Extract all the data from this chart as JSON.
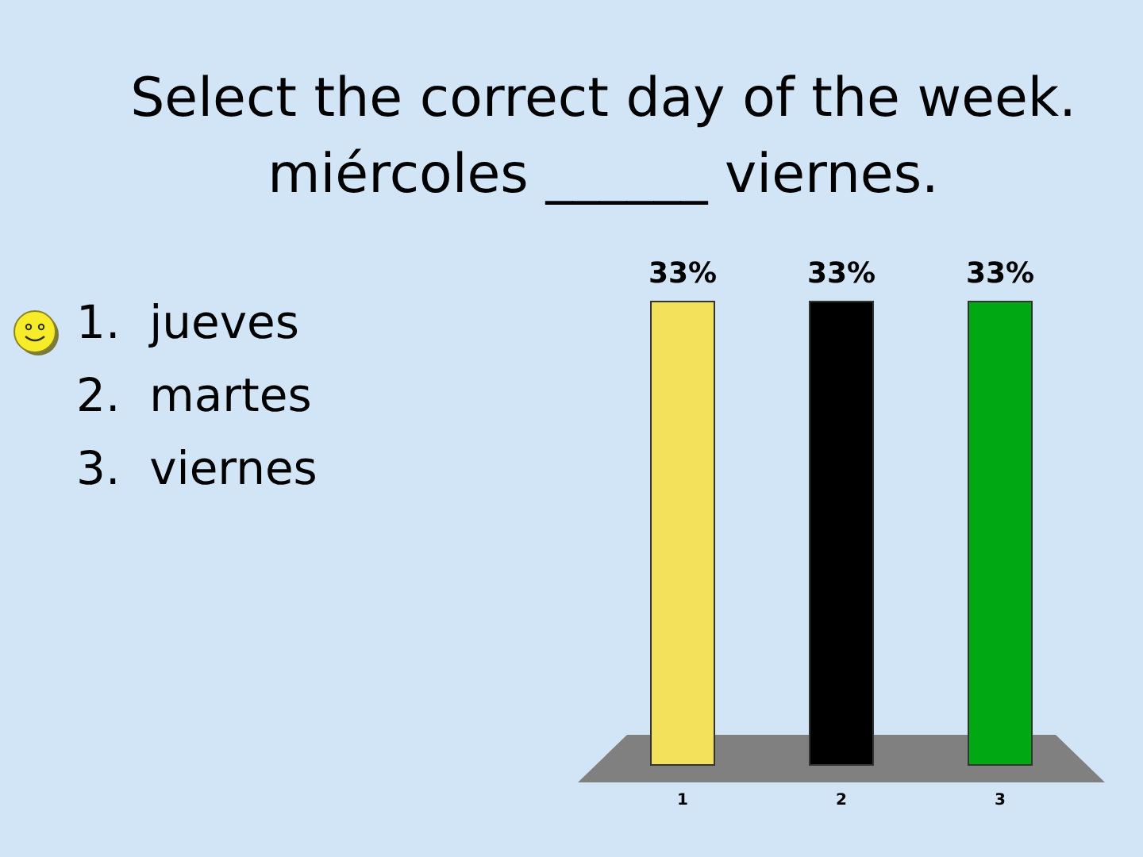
{
  "chart_data": {
    "type": "bar",
    "title": "Select the correct day of the week.",
    "subtitle": "miércoles ______ viernes.",
    "annotations": [
      "1.  jueves",
      "2.  martes",
      "3.  viernes"
    ],
    "categories": [
      "1",
      "2",
      "3"
    ],
    "values": [
      33,
      33,
      33
    ],
    "colors": [
      "#f3e15c",
      "#000000",
      "#00a814"
    ],
    "value_labels": [
      "33%",
      "33%",
      "33%"
    ]
  }
}
